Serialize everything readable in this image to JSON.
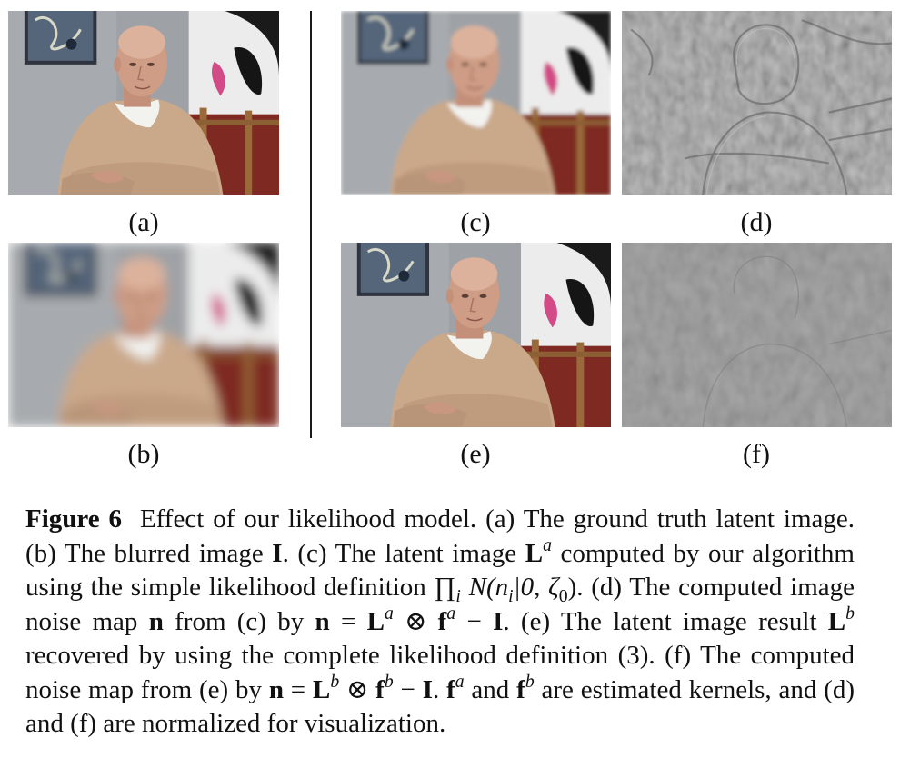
{
  "figure": {
    "panels": [
      {
        "id": "a",
        "label": "(a)",
        "kind": "sharp"
      },
      {
        "id": "b",
        "label": "(b)",
        "kind": "blurred"
      },
      {
        "id": "c",
        "label": "(c)",
        "kind": "latent-simple"
      },
      {
        "id": "d",
        "label": "(d)",
        "kind": "noise-map-strong"
      },
      {
        "id": "e",
        "label": "(e)",
        "kind": "latent-complete"
      },
      {
        "id": "f",
        "label": "(f)",
        "kind": "noise-map-weak"
      }
    ],
    "caption": {
      "figure_label": "Figure 6",
      "t1": "Effect of our likelihood model. (a) The ground truth latent image. (b) The blurred image ",
      "I": "I",
      "t2": ". (c) The latent image ",
      "L": "L",
      "a": "a",
      "t3": " computed by our algorithm using the simple likelihood definition ",
      "prod": "∏",
      "i": "i",
      "N_expr_1": " N(n",
      "N_expr_2": "|0, ζ",
      "zero": "0",
      "N_expr_3": ").",
      "t4": " (d) The computed image noise map ",
      "n": "n",
      "t5": " from (c) by ",
      "eq": " = ",
      "otimes": " ⊗ ",
      "f": "f",
      "minus": " − ",
      "t6": ". (e) The latent image result ",
      "b": "b",
      "t7": " recovered by using the complete likelihood definition (3). (f) The computed noise map from (e) by ",
      "t8": ". ",
      "t9": " and ",
      "t10": " are estimated kernels, and (d) and (f) are normalized for visualization."
    }
  },
  "colors": {
    "wall": "#9a9ea2",
    "sweater": "#c9a88a",
    "skin": "#c99a82",
    "collar": "#f1f1ee",
    "red": "#8a2a22",
    "noise_gray": "#8e8e8e"
  }
}
